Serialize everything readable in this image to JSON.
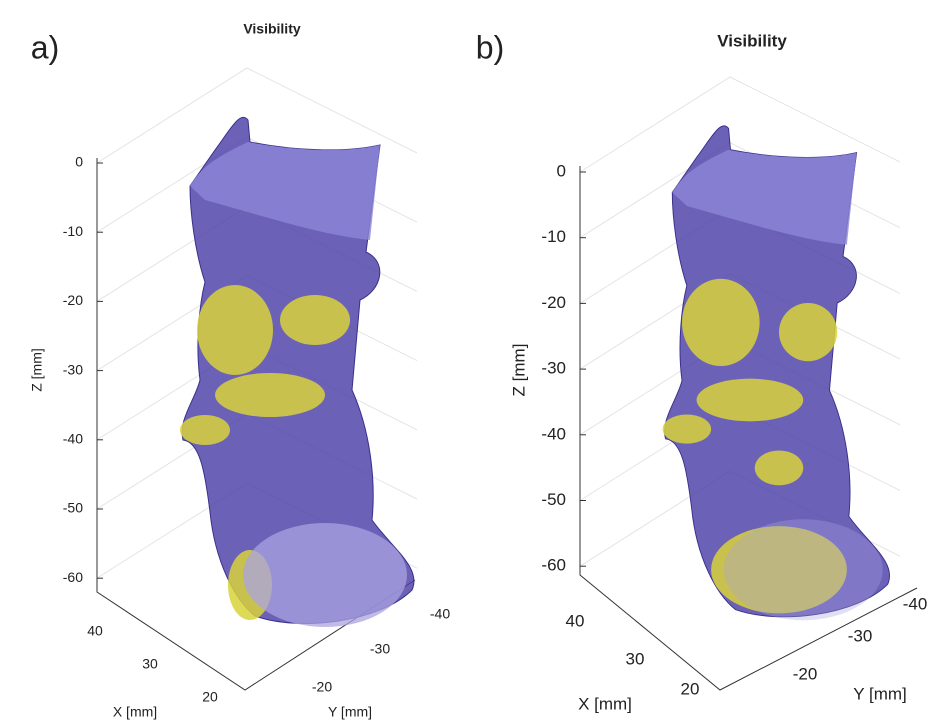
{
  "panels": [
    {
      "panel_label": "a)",
      "title": "Visibility",
      "z_label": "Z [mm]",
      "x_label": "X [mm]",
      "y_label": "Y [mm]",
      "z_ticks": [
        0,
        -10,
        -20,
        -30,
        -40,
        -50,
        -60
      ],
      "x_ticks": [
        40,
        30,
        20
      ],
      "y_ticks": [
        -20,
        -30,
        -40
      ]
    },
    {
      "panel_label": "b)",
      "title": "Visibility",
      "z_label": "Z [mm]",
      "x_label": "X [mm]",
      "y_label": "Y [mm]",
      "z_ticks": [
        0,
        -10,
        -20,
        -30,
        -40,
        -50,
        -60
      ],
      "x_ticks": [
        40,
        30,
        20
      ],
      "y_ticks": [
        -20,
        -30,
        -40
      ]
    }
  ]
}
